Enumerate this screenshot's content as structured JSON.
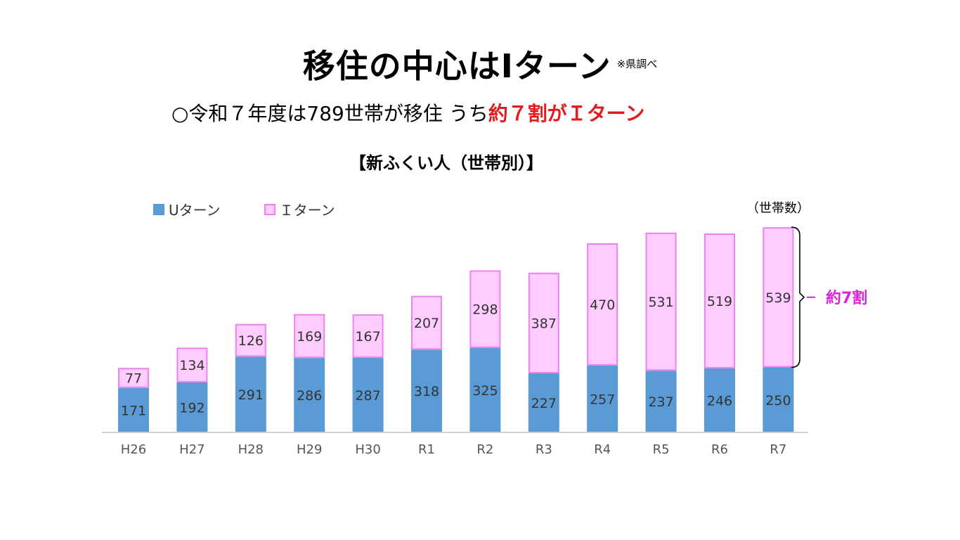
{
  "title": {
    "main": "移住の中心はIターン",
    "note": "※県調べ"
  },
  "subtitle": {
    "prefix": "○令和７年度は789世帯が移住 うち",
    "highlight": "約７割がＩターン"
  },
  "chart_heading": "【新ふくい人（世帯別）】",
  "unit_label": "（世帯数）",
  "ratio_label": "約7割",
  "colors": {
    "u_turn": "#5b9bd5",
    "i_turn_fill": "#ffccff",
    "i_turn_border": "#ee82ee",
    "highlight": "#e41a1c",
    "ratio": "#e020e0"
  },
  "chart_data": {
    "type": "bar",
    "stacked": true,
    "categories": [
      "H26",
      "H27",
      "H28",
      "H29",
      "H30",
      "R1",
      "R2",
      "R3",
      "R4",
      "R5",
      "R6",
      "R7"
    ],
    "series": [
      {
        "name": "Uターン",
        "values": [
          171,
          192,
          291,
          286,
          287,
          318,
          325,
          227,
          257,
          237,
          246,
          250
        ]
      },
      {
        "name": "Ｉターン",
        "values": [
          77,
          134,
          126,
          169,
          167,
          207,
          298,
          387,
          470,
          531,
          519,
          539
        ]
      }
    ],
    "ylim": [
      0,
      800
    ],
    "grid": false,
    "legend": "top-left"
  }
}
